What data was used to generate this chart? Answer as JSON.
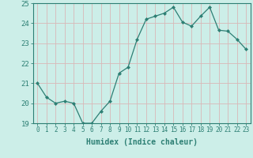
{
  "x": [
    0,
    1,
    2,
    3,
    4,
    5,
    6,
    7,
    8,
    9,
    10,
    11,
    12,
    13,
    14,
    15,
    16,
    17,
    18,
    19,
    20,
    21,
    22,
    23
  ],
  "y": [
    21.0,
    20.3,
    20.0,
    20.1,
    20.0,
    19.0,
    19.0,
    19.6,
    20.1,
    21.5,
    21.8,
    23.2,
    24.2,
    24.35,
    24.5,
    24.8,
    24.05,
    23.85,
    24.35,
    24.8,
    23.65,
    23.6,
    23.2,
    22.7
  ],
  "line_color": "#2d7f74",
  "marker": "D",
  "marker_size": 2,
  "bg_color": "#cceee8",
  "grid_color": "#d9b8b8",
  "tick_color": "#2d7f74",
  "label_color": "#2d7f74",
  "xlabel": "Humidex (Indice chaleur)",
  "ylim": [
    19,
    25
  ],
  "xlim": [
    -0.5,
    23.5
  ],
  "yticks": [
    19,
    20,
    21,
    22,
    23,
    24,
    25
  ],
  "xticks": [
    0,
    1,
    2,
    3,
    4,
    5,
    6,
    7,
    8,
    9,
    10,
    11,
    12,
    13,
    14,
    15,
    16,
    17,
    18,
    19,
    20,
    21,
    22,
    23
  ],
  "xlabel_fontsize": 7,
  "tick_fontsize": 5.5,
  "ytick_fontsize": 6.5
}
